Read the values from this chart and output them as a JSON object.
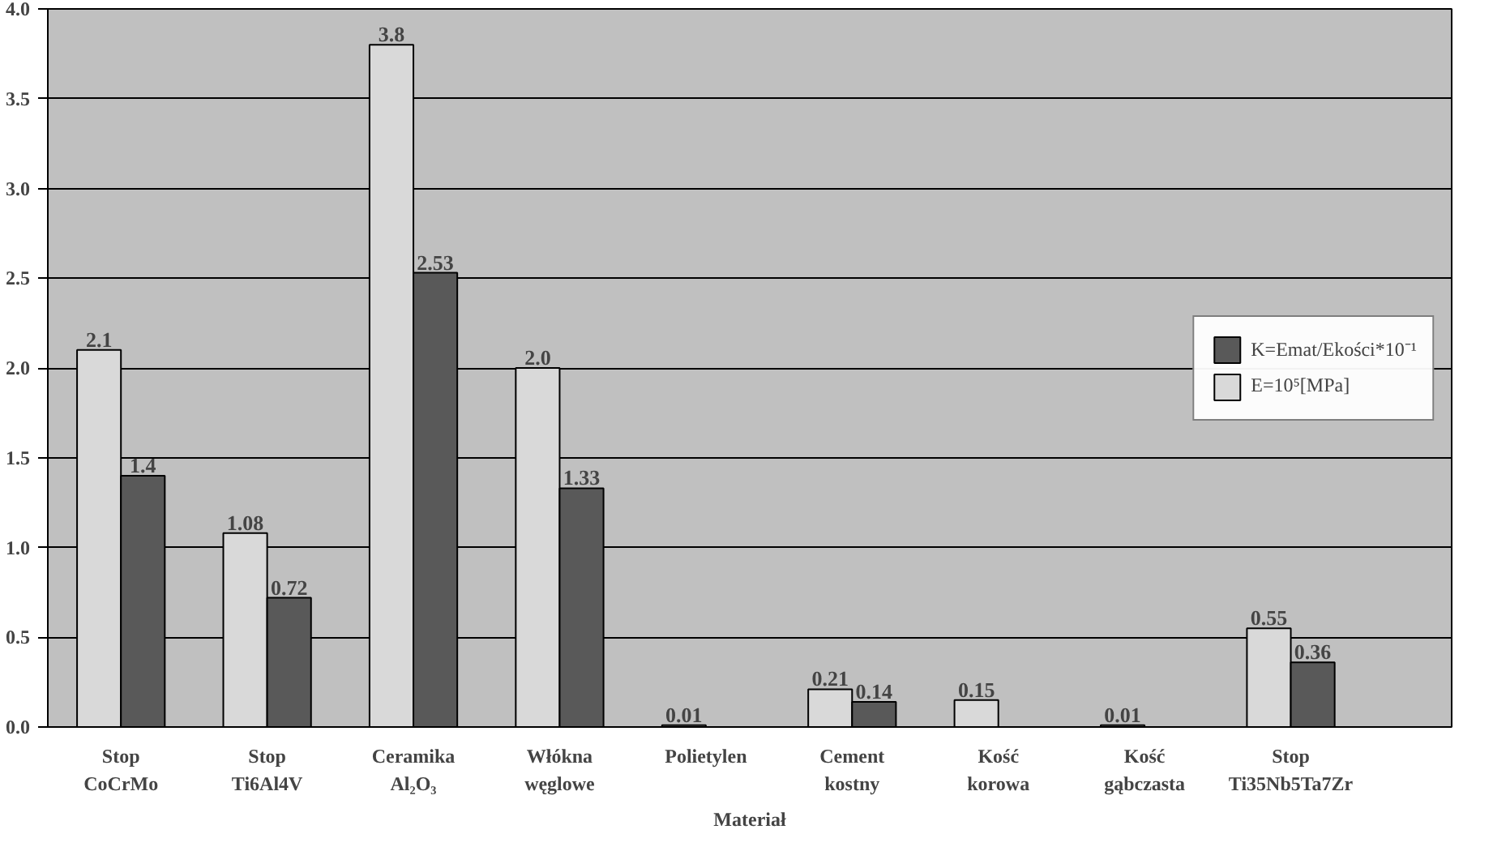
{
  "chart_data": {
    "type": "bar",
    "xlabel": "Materiał",
    "categories": [
      "Stop\nCoCrMo",
      "Stop\nTi6Al4V",
      "Ceramika\nAl₂O₃",
      "Włókna\nwęglowe",
      "Polietylen",
      "Cement\nkostny",
      "Kość\nkorowa",
      "Kość\ngąbczasta",
      "Stop\nTi35Nb5Ta7Zr"
    ],
    "series": [
      {
        "name": "E=10⁵[MPa]",
        "color": "#d9d9d9",
        "values": [
          2.1,
          1.08,
          3.8,
          2.0,
          0.01,
          0.21,
          0.15,
          0.01,
          0.55
        ],
        "value_labels": [
          "2.1",
          "1.08",
          "3.8",
          "2.0",
          "0.01",
          "0.21",
          "0.15",
          "0.01",
          "0.55"
        ]
      },
      {
        "name": "K=Emat/Ekości*10⁻¹",
        "color": "#595959",
        "values": [
          1.4,
          0.72,
          2.53,
          1.33,
          null,
          0.14,
          null,
          null,
          0.36
        ],
        "value_labels": [
          "1.4",
          "0.72",
          "2.53",
          "1.33",
          null,
          "0.14",
          null,
          null,
          "0.36"
        ]
      }
    ],
    "ylim": [
      0,
      4
    ],
    "yticks": [
      {
        "value": 0,
        "label": "0.0"
      },
      {
        "value": 0.5,
        "label": "0.5"
      },
      {
        "value": 1,
        "label": "1.0"
      },
      {
        "value": 1.5,
        "label": "1.5"
      },
      {
        "value": 2,
        "label": "2.0"
      },
      {
        "value": 2.5,
        "label": "2.5"
      },
      {
        "value": 3,
        "label": "3.0"
      },
      {
        "value": 3.5,
        "label": "3.5"
      },
      {
        "value": 4,
        "label": "4.0"
      }
    ],
    "grid": "y",
    "legend": "right"
  }
}
